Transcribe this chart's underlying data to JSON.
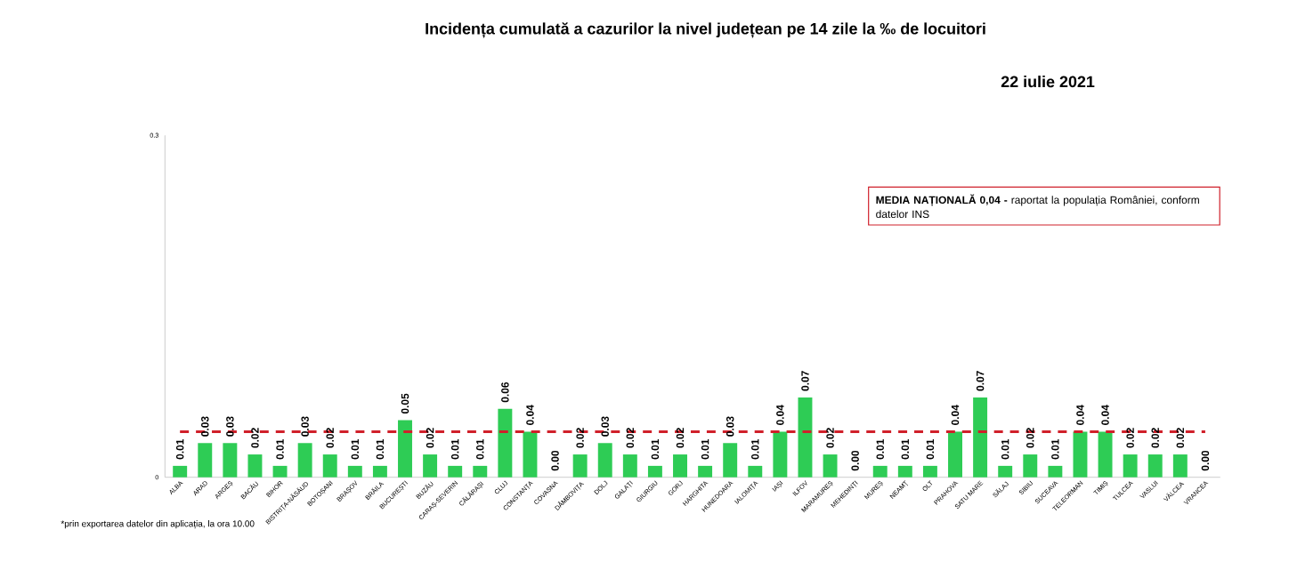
{
  "chart_data": {
    "type": "bar",
    "title": "Incidența cumulată a cazurilor la nivel județean pe 14 zile   la ‰ de locuitori",
    "subtitle": "22 iulie 2021",
    "categories": [
      "ALBA",
      "ARAD",
      "ARGEȘ",
      "BACĂU",
      "BIHOR",
      "BISTRIȚA-NĂSĂUD",
      "BOTOȘANI",
      "BRAȘOV",
      "BRĂILA",
      "BUCUREȘTI",
      "BUZĂU",
      "CARAȘ-SEVERIN",
      "CĂLĂRAȘI",
      "CLUJ",
      "CONSTANȚA",
      "COVASNA",
      "DÂMBOVIȚA",
      "DOLJ",
      "GALAȚI",
      "GIURGIU",
      "GORJ",
      "HARGHITA",
      "HUNEDOARA",
      "IALOMIȚA",
      "IAȘI",
      "ILFOV",
      "MARAMUREȘ",
      "MEHEDINȚI",
      "MUREȘ",
      "NEAMȚ",
      "OLT",
      "PRAHOVA",
      "SATU MARE",
      "SĂLAJ",
      "SIBIU",
      "SUCEAVA",
      "TELEORMAN",
      "TIMIȘ",
      "TULCEA",
      "VASLUI",
      "VÂLCEA",
      "VRANCEA"
    ],
    "values": [
      0.01,
      0.03,
      0.03,
      0.02,
      0.01,
      0.03,
      0.02,
      0.01,
      0.01,
      0.05,
      0.02,
      0.01,
      0.01,
      0.06,
      0.04,
      0.0,
      0.02,
      0.03,
      0.02,
      0.01,
      0.02,
      0.01,
      0.03,
      0.01,
      0.04,
      0.07,
      0.02,
      0.0,
      0.01,
      0.01,
      0.01,
      0.04,
      0.07,
      0.01,
      0.02,
      0.01,
      0.04,
      0.04,
      0.02,
      0.02,
      0.02,
      0.0
    ],
    "color": "#2ecc55",
    "value_labels": [
      "0.01",
      "0.03",
      "0.03",
      "0.02",
      "0.01",
      "0.03",
      "0.02",
      "0.01",
      "0.01",
      "0.05",
      "0.02",
      "0.01",
      "0.01",
      "0.06",
      "0.04",
      "0.00",
      "0.02",
      "0.03",
      "0.02",
      "0.01",
      "0.02",
      "0.01",
      "0.03",
      "0.01",
      "0.04",
      "0.07",
      "0.02",
      "0.00",
      "0.01",
      "0.01",
      "0.01",
      "0.04",
      "0.07",
      "0.01",
      "0.02",
      "0.01",
      "0.04",
      "0.04",
      "0.02",
      "0.02",
      "0.02",
      "0.00"
    ],
    "ylim": [
      0,
      0.3
    ],
    "yticks": [
      0,
      0.3
    ],
    "ref_lines": [
      {
        "axis": "y",
        "value": 0.04,
        "label": "**MEDIA NAȚIONALĂ 0,04 -** raportat la populația României, conform datelor INS",
        "color": "#d0202a",
        "line_style": "dashed"
      }
    ],
    "annotations": [
      "*prin exportarea datelor din aplicația, la ora 10.00"
    ]
  }
}
